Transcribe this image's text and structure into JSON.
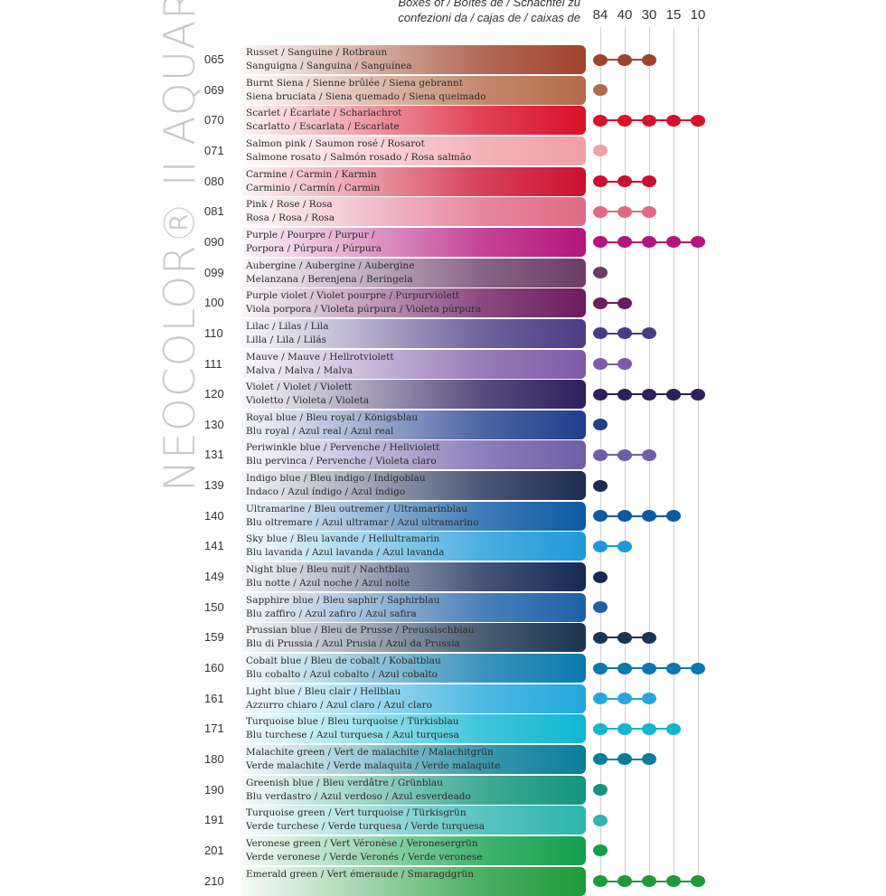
{
  "title": "NEOCOLOR® II AQUARELLE",
  "header": {
    "boxes_line1": "Boxes of / Boîtes de / Schachtel zu",
    "boxes_line2": "confezioni da / cajas de / caixas de",
    "sizes": [
      "84",
      "40",
      "30",
      "15",
      "10"
    ]
  },
  "colors": [
    {
      "code": "065",
      "line1": "Russet / Sanguine / Rotbraun",
      "line2": "Sanguigna / Sanguina / Sanguínea",
      "color": "#a0432c",
      "boxes": [
        true,
        true,
        true,
        false,
        false
      ]
    },
    {
      "code": "069",
      "line1": "Burnt Siena / Sienne brûlée / Siena gebrannt",
      "line2": "Siena bruciata / Siena quemado / Siena queimado",
      "color": "#b56a4a",
      "boxes": [
        true,
        false,
        false,
        false,
        false
      ]
    },
    {
      "code": "070",
      "line1": "Scarlet / Écarlate / Scharlachrot",
      "line2": "Scarlatto / Escarlata / Escarlate",
      "color": "#d8112a",
      "boxes": [
        true,
        true,
        true,
        true,
        true
      ]
    },
    {
      "code": "071",
      "line1": "Salmon pink / Saumon rosé / Rosarot",
      "line2": "Salmone rosato / Salmón rosado / Rosa salmão",
      "color": "#f0a0a6",
      "boxes": [
        true,
        false,
        false,
        false,
        false
      ]
    },
    {
      "code": "080",
      "line1": "Carmine / Carmin / Karmin",
      "line2": "Carminio / Carmín / Carmin",
      "color": "#cc1030",
      "boxes": [
        true,
        true,
        true,
        false,
        false
      ]
    },
    {
      "code": "081",
      "line1": "Pink / Rose / Rosa",
      "line2": "Rosa / Rosa / Rosa",
      "color": "#e06a84",
      "boxes": [
        true,
        true,
        true,
        false,
        false
      ]
    },
    {
      "code": "090",
      "line1": "Purple / Pourpre / Purpur /",
      "line2": "Porpora / Púrpura / Púrpura",
      "color": "#b4157c",
      "boxes": [
        true,
        true,
        true,
        true,
        true
      ]
    },
    {
      "code": "099",
      "line1": "Aubergine / Aubergine / Aubergine",
      "line2": "Melanzana / Berenjena / Beringela",
      "color": "#6a3d66",
      "boxes": [
        true,
        false,
        false,
        false,
        false
      ]
    },
    {
      "code": "100",
      "line1": "Purple violet / Violet pourpre / Purpurviolett",
      "line2": "Viola porpora / Violeta púrpura / Violeta púrpura",
      "color": "#6d1b5e",
      "boxes": [
        true,
        true,
        false,
        false,
        false
      ]
    },
    {
      "code": "110",
      "line1": "Lilac / Lilas / Lila",
      "line2": "Lilla / Lila / Lilás",
      "color": "#4b3b86",
      "boxes": [
        true,
        true,
        true,
        false,
        false
      ]
    },
    {
      "code": "111",
      "line1": "Mauve / Mauve / Hellrotviolett",
      "line2": "Malva / Malva / Malva",
      "color": "#7e5aa8",
      "boxes": [
        true,
        true,
        false,
        false,
        false
      ]
    },
    {
      "code": "120",
      "line1": "Violet / Violet / Violett",
      "line2": "Violetto / Violeta / Violeta",
      "color": "#2e1f5e",
      "boxes": [
        true,
        true,
        true,
        true,
        true
      ]
    },
    {
      "code": "130",
      "line1": "Royal blue / Bleu royal / Königsblau",
      "line2": "Blu royal / Azul real / Azul real",
      "color": "#1f3f8c",
      "boxes": [
        true,
        false,
        false,
        false,
        false
      ]
    },
    {
      "code": "131",
      "line1": "Periwinkle blue / Pervenche / Hellviolett",
      "line2": "Blu pervinca / Pervenche / Violeta claro",
      "color": "#6f5fa8",
      "boxes": [
        true,
        true,
        true,
        false,
        false
      ]
    },
    {
      "code": "139",
      "line1": "Indigo blue / Bleu indigo / Indigoblau",
      "line2": "Indaco / Azul índigo / Azul índigo",
      "color": "#1d2c54",
      "boxes": [
        true,
        false,
        false,
        false,
        false
      ]
    },
    {
      "code": "140",
      "line1": "Ultramarine / Bleu outremer / Ultramarinblau",
      "line2": "Blu oltremare / Azul ultramar / Azul ultramarino",
      "color": "#0d5aa3",
      "boxes": [
        true,
        true,
        true,
        true,
        false
      ]
    },
    {
      "code": "141",
      "line1": "Sky blue / Bleu lavande / Hellultramarin",
      "line2": "Blu lavanda / Azul lavanda / Azul lavanda",
      "color": "#1e9ad8",
      "boxes": [
        true,
        true,
        false,
        false,
        false
      ]
    },
    {
      "code": "149",
      "line1": "Night blue / Bleu nuit / Nachtblau",
      "line2": "Blu notte / Azul noche / Azul noite",
      "color": "#162955",
      "boxes": [
        true,
        false,
        false,
        false,
        false
      ]
    },
    {
      "code": "150",
      "line1": "Sapphire blue / Bleu saphir / Saphirblau",
      "line2": "Blu zaffiro / Azul zafiro / Azul safira",
      "color": "#1d60a8",
      "boxes": [
        true,
        false,
        false,
        false,
        false
      ]
    },
    {
      "code": "159",
      "line1": "Prussian blue / Bleu de Prusse / Preussischblau",
      "line2": "Blu di Prussia / Azul Prusia / Azul da Prussia",
      "color": "#1b3550",
      "boxes": [
        true,
        true,
        true,
        false,
        false
      ]
    },
    {
      "code": "160",
      "line1": "Cobalt blue / Bleu de cobalt / Kobaltblau",
      "line2": "Blu cobalto / Azul cobalto / Azul cobalto",
      "color": "#0a79ad",
      "boxes": [
        true,
        true,
        true,
        true,
        true
      ]
    },
    {
      "code": "161",
      "line1": "Light blue / Bleu clair / Hellblau",
      "line2": "Azzurro chiaro / Azul claro / Azul claro",
      "color": "#22a8dc",
      "boxes": [
        true,
        true,
        true,
        false,
        false
      ]
    },
    {
      "code": "171",
      "line1": "Turquoise blue / Bleu turquoise / Türkisblau",
      "line2": "Blu turchese / Azul turquesa / Azul turquesa",
      "color": "#10b7d2",
      "boxes": [
        true,
        true,
        true,
        true,
        false
      ]
    },
    {
      "code": "180",
      "line1": "Malachite green / Vert de malachite / Malachitgrün",
      "line2": "Verde malachite / Verde malaquita / Verde malaquite",
      "color": "#0a7d9a",
      "boxes": [
        true,
        true,
        true,
        false,
        false
      ]
    },
    {
      "code": "190",
      "line1": "Greenish blue / Bleu verdâtre / Grünblau",
      "line2": "Blu verdastro / Azul verdoso / Azul esverdeado",
      "color": "#12957a",
      "boxes": [
        true,
        false,
        false,
        false,
        false
      ]
    },
    {
      "code": "191",
      "line1": "Turquoise green / Vert turquoise / Türkisgrün",
      "line2": "Verde turchese / Verde turquesa / Verde turquesa",
      "color": "#2fb4b0",
      "boxes": [
        true,
        false,
        false,
        false,
        false
      ]
    },
    {
      "code": "201",
      "line1": "Veronese green / Vert Véronèse / Veronesergrün",
      "line2": "Verde veronese / Verde Veronés / Verde veronese",
      "color": "#12a04a",
      "boxes": [
        true,
        false,
        false,
        false,
        false
      ]
    },
    {
      "code": "210",
      "line1": "Emerald green / Vert émeraude / Smaragdgrün",
      "line2": "",
      "color": "#1e9a3a",
      "boxes": [
        true,
        true,
        true,
        true,
        true
      ]
    }
  ]
}
